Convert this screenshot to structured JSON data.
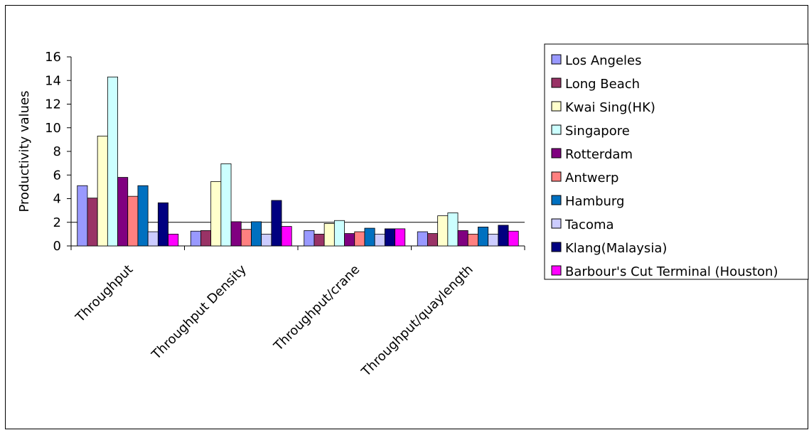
{
  "chart_data": {
    "type": "bar",
    "title": "",
    "xlabel": "",
    "ylabel": "Productivity values",
    "ylim": [
      0,
      16
    ],
    "yticks": [
      0,
      2,
      4,
      6,
      8,
      10,
      12,
      14,
      16
    ],
    "grid": false,
    "legend_position": "right",
    "reference_line": 2,
    "categories": [
      "Throughput",
      "Throughput Density",
      "Throughput/crane",
      "Throughput/quaylength"
    ],
    "series": [
      {
        "name": "Los Angeles",
        "color": "#9999FF",
        "values": [
          5.1,
          1.25,
          1.3,
          1.2
        ]
      },
      {
        "name": "Long Beach",
        "color": "#993366",
        "values": [
          4.05,
          1.3,
          1.0,
          1.05
        ]
      },
      {
        "name": "Kwai Sing(HK)",
        "color": "#FFFFCC",
        "values": [
          9.3,
          5.45,
          1.9,
          2.55
        ]
      },
      {
        "name": "Singapore",
        "color": "#CCFFFF",
        "values": [
          14.3,
          6.95,
          2.15,
          2.8
        ]
      },
      {
        "name": "Rotterdam",
        "color": "#800080",
        "values": [
          5.8,
          2.05,
          1.05,
          1.3
        ]
      },
      {
        "name": "Antwerp",
        "color": "#FF8080",
        "values": [
          4.2,
          1.4,
          1.2,
          1.0
        ]
      },
      {
        "name": "Hamburg",
        "color": "#0070C0",
        "values": [
          5.1,
          2.05,
          1.5,
          1.6
        ]
      },
      {
        "name": "Tacoma",
        "color": "#CCCCFF",
        "values": [
          1.2,
          1.0,
          1.0,
          1.0
        ]
      },
      {
        "name": "Klang(Malaysia)",
        "color": "#000080",
        "values": [
          3.65,
          3.85,
          1.45,
          1.75
        ]
      },
      {
        "name": "Barbour's Cut Terminal (Houston)",
        "color": "#FF00FF",
        "values": [
          1.0,
          1.65,
          1.45,
          1.25
        ]
      }
    ]
  }
}
